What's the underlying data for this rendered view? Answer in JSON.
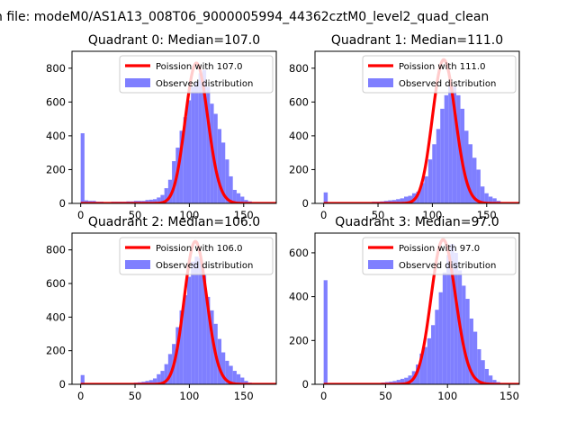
{
  "figure": {
    "suptitle": "n file: modeM0/AS1A13_008T06_9000005994_44362cztM0_level2_quad_clean",
    "hist_color": "#7f7fff",
    "fit_color": "#ff0000"
  },
  "chart_data": [
    {
      "type": "bar",
      "title": "Quadrant 0: Median=107.0",
      "xlim": [
        -8,
        180
      ],
      "ylim": [
        0,
        900
      ],
      "xticks": [
        0,
        50,
        100,
        150
      ],
      "yticks": [
        0,
        200,
        400,
        600,
        800
      ],
      "legend_placement": "top-right",
      "bin_width": 3.5,
      "legend": {
        "fit": "Poission with 107.0",
        "hist": "Observed distribution"
      },
      "series": [
        {
          "name": "Observed distribution",
          "kind": "hist",
          "x": [
            0,
            3.5,
            7,
            10.5,
            14,
            17.5,
            21,
            24.5,
            28,
            31.5,
            35,
            38.5,
            42,
            45.5,
            49,
            52.5,
            56,
            59.5,
            63,
            66.5,
            70,
            73.5,
            77,
            80.5,
            84,
            87.5,
            91,
            94.5,
            98,
            101.5,
            105,
            108.5,
            112,
            115.5,
            119,
            122.5,
            126,
            129.5,
            133,
            136.5,
            140,
            143.5,
            147,
            150.5,
            154,
            157.5,
            161,
            164.5
          ],
          "values": [
            415,
            18,
            15,
            15,
            10,
            10,
            8,
            8,
            10,
            10,
            10,
            10,
            12,
            12,
            15,
            15,
            15,
            20,
            22,
            25,
            35,
            50,
            90,
            140,
            250,
            330,
            430,
            510,
            610,
            690,
            720,
            770,
            790,
            690,
            590,
            530,
            440,
            360,
            260,
            160,
            80,
            60,
            40,
            20,
            12,
            8,
            5,
            3
          ]
        },
        {
          "name": "Poission with 107.0",
          "kind": "poisson",
          "mean": 107,
          "peak": 830
        }
      ]
    },
    {
      "type": "bar",
      "title": "Quadrant 1: Median=111.0",
      "xlim": [
        -8,
        180
      ],
      "ylim": [
        0,
        900
      ],
      "xticks": [
        0,
        50,
        100,
        150
      ],
      "yticks": [
        0,
        200,
        400,
        600,
        800
      ],
      "legend_placement": "top-right",
      "bin_width": 3.7,
      "legend": {
        "fit": "Poission with 111.0",
        "hist": "Observed distribution"
      },
      "series": [
        {
          "name": "Observed distribution",
          "kind": "hist",
          "x": [
            0,
            3.7,
            7.4,
            11.1,
            14.8,
            18.5,
            22.2,
            25.9,
            29.6,
            33.3,
            37,
            40.7,
            44.4,
            48.1,
            51.8,
            55.5,
            59.2,
            62.9,
            66.6,
            70.3,
            74,
            77.7,
            81.4,
            85.1,
            88.8,
            92.5,
            96.2,
            99.9,
            103.6,
            107.3,
            111,
            114.7,
            118.4,
            122.1,
            125.8,
            129.5,
            133.2,
            136.9,
            140.6,
            144.3,
            148,
            151.7,
            155.4,
            159.1,
            162.8,
            166.5,
            170.2
          ],
          "values": [
            65,
            8,
            6,
            6,
            6,
            6,
            6,
            6,
            6,
            6,
            8,
            8,
            10,
            10,
            12,
            15,
            18,
            20,
            25,
            30,
            40,
            45,
            60,
            70,
            120,
            160,
            260,
            350,
            440,
            560,
            640,
            700,
            690,
            640,
            560,
            430,
            350,
            270,
            200,
            100,
            60,
            40,
            30,
            15,
            8,
            5,
            3
          ]
        },
        {
          "name": "Poission with 111.0",
          "kind": "poisson",
          "mean": 111,
          "peak": 850
        }
      ]
    },
    {
      "type": "bar",
      "title": "Quadrant 2: Median=106.0",
      "xlim": [
        -8,
        180
      ],
      "ylim": [
        0,
        900
      ],
      "xticks": [
        0,
        50,
        100,
        150
      ],
      "yticks": [
        0,
        200,
        400,
        600,
        800
      ],
      "legend_placement": "top-right",
      "bin_width": 3.5,
      "legend": {
        "fit": "Poission with 106.0",
        "hist": "Observed distribution"
      },
      "series": [
        {
          "name": "Observed distribution",
          "kind": "hist",
          "x": [
            0,
            3.5,
            7,
            10.5,
            14,
            17.5,
            21,
            24.5,
            28,
            31.5,
            35,
            38.5,
            42,
            45.5,
            49,
            52.5,
            56,
            59.5,
            63,
            66.5,
            70,
            73.5,
            77,
            80.5,
            84,
            87.5,
            91,
            94.5,
            98,
            101.5,
            105,
            108.5,
            112,
            115.5,
            119,
            122.5,
            126,
            129.5,
            133,
            136.5,
            140,
            143.5,
            147,
            150.5,
            154,
            157.5,
            161
          ],
          "values": [
            55,
            6,
            5,
            5,
            5,
            5,
            5,
            5,
            5,
            5,
            5,
            6,
            6,
            8,
            10,
            12,
            15,
            20,
            25,
            35,
            60,
            80,
            120,
            180,
            240,
            340,
            440,
            530,
            640,
            730,
            760,
            750,
            650,
            520,
            440,
            360,
            270,
            190,
            140,
            110,
            80,
            60,
            40,
            20,
            10,
            6,
            3
          ]
        },
        {
          "name": "Poission with 106.0",
          "kind": "poisson",
          "mean": 106,
          "peak": 850
        }
      ]
    },
    {
      "type": "bar",
      "title": "Quadrant 3: Median=97.0",
      "xlim": [
        -7,
        158
      ],
      "ylim": [
        0,
        690
      ],
      "xticks": [
        0,
        50,
        100,
        150
      ],
      "yticks": [
        0,
        200,
        400,
        600
      ],
      "legend_placement": "top-right",
      "bin_width": 3.1,
      "legend": {
        "fit": "Poission with 97.0",
        "hist": "Observed distribution"
      },
      "series": [
        {
          "name": "Observed distribution",
          "kind": "hist",
          "x": [
            0,
            3.1,
            6.2,
            9.3,
            12.4,
            15.5,
            18.6,
            21.7,
            24.8,
            27.9,
            31,
            34.1,
            37.2,
            40.3,
            43.4,
            46.5,
            49.6,
            52.7,
            55.8,
            58.9,
            62,
            65.1,
            68.2,
            71.3,
            74.4,
            77.5,
            80.6,
            83.7,
            86.8,
            89.9,
            93,
            96.1,
            99.2,
            102.3,
            105.4,
            108.5,
            111.6,
            114.7,
            117.8,
            120.9,
            124,
            127.1,
            130.2,
            133.3,
            136.4,
            139.5,
            142.6,
            145.7
          ],
          "values": [
            475,
            6,
            5,
            5,
            5,
            5,
            5,
            5,
            5,
            5,
            5,
            5,
            5,
            5,
            6,
            8,
            10,
            12,
            15,
            20,
            25,
            30,
            40,
            60,
            90,
            140,
            170,
            210,
            270,
            340,
            420,
            510,
            590,
            640,
            600,
            520,
            450,
            390,
            300,
            240,
            160,
            110,
            70,
            40,
            20,
            10,
            6,
            4
          ]
        },
        {
          "name": "Poission with 97.0",
          "kind": "poisson",
          "mean": 97,
          "peak": 660
        }
      ]
    }
  ]
}
